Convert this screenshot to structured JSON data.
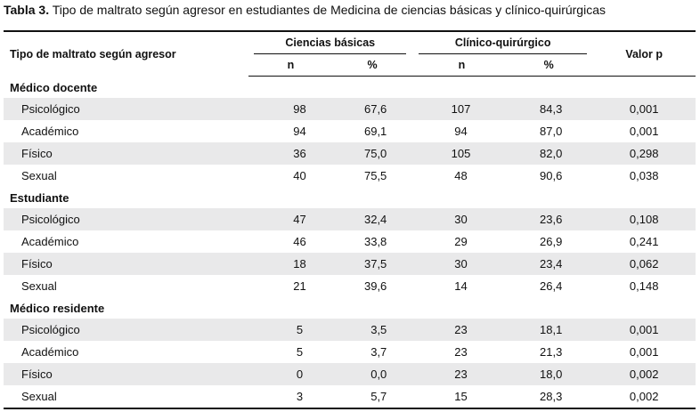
{
  "caption": {
    "label": "Tabla 3.",
    "text": " Tipo de maltrato según agresor en estudiantes de Medicina de ciencias básicas y clínico-quirúrgicas"
  },
  "header": {
    "first_col": "Tipo de maltrato según agresor",
    "group1": "Ciencias básicas",
    "group2": "Clínico-quirúrgico",
    "pvalue": "Valor p",
    "n": "n",
    "pct": "%"
  },
  "groups": [
    {
      "name": "Médico docente",
      "rows": [
        {
          "tipo": "Psicológico",
          "n1": "98",
          "p1": "67,6",
          "n2": "107",
          "p2": "84,3",
          "pv": "0,001"
        },
        {
          "tipo": "Académico",
          "n1": "94",
          "p1": "69,1",
          "n2": "94",
          "p2": "87,0",
          "pv": "0,001"
        },
        {
          "tipo": "Físico",
          "n1": "36",
          "p1": "75,0",
          "n2": "105",
          "p2": "82,0",
          "pv": "0,298"
        },
        {
          "tipo": "Sexual",
          "n1": "40",
          "p1": "75,5",
          "n2": "48",
          "p2": "90,6",
          "pv": "0,038"
        }
      ]
    },
    {
      "name": "Estudiante",
      "rows": [
        {
          "tipo": "Psicológico",
          "n1": "47",
          "p1": "32,4",
          "n2": "30",
          "p2": "23,6",
          "pv": "0,108"
        },
        {
          "tipo": "Académico",
          "n1": "46",
          "p1": "33,8",
          "n2": "29",
          "p2": "26,9",
          "pv": "0,241"
        },
        {
          "tipo": "Físico",
          "n1": "18",
          "p1": "37,5",
          "n2": "30",
          "p2": "23,4",
          "pv": "0,062"
        },
        {
          "tipo": "Sexual",
          "n1": "21",
          "p1": "39,6",
          "n2": "14",
          "p2": "26,4",
          "pv": "0,148"
        }
      ]
    },
    {
      "name": "Médico residente",
      "rows": [
        {
          "tipo": "Psicológico",
          "n1": "5",
          "p1": "3,5",
          "n2": "23",
          "p2": "18,1",
          "pv": "0,001"
        },
        {
          "tipo": "Académico",
          "n1": "5",
          "p1": "3,7",
          "n2": "23",
          "p2": "21,3",
          "pv": "0,001"
        },
        {
          "tipo": "Físico",
          "n1": "0",
          "p1": "0,0",
          "n2": "23",
          "p2": "18,0",
          "pv": "0,002"
        },
        {
          "tipo": "Sexual",
          "n1": "3",
          "p1": "5,7",
          "n2": "15",
          "p2": "28,3",
          "pv": "0,002"
        }
      ]
    }
  ],
  "colors": {
    "shade": "#e9e9ea",
    "rule": "#111111"
  }
}
